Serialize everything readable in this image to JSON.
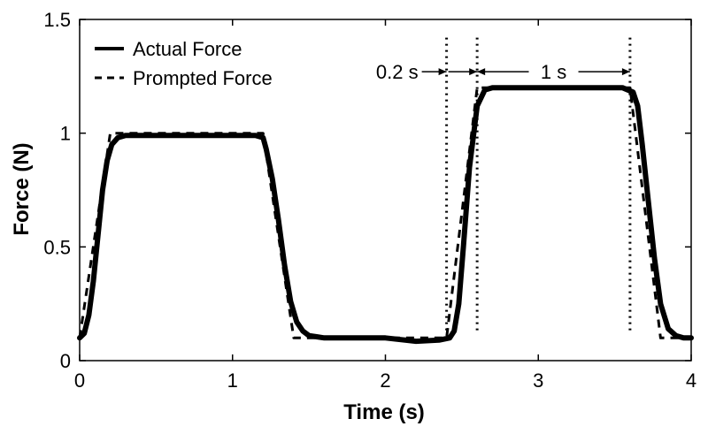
{
  "chart_data": {
    "type": "line",
    "title": "",
    "xlabel": "Time (s)",
    "ylabel": "Force (N)",
    "xlim": [
      0,
      4
    ],
    "ylim": [
      0,
      1.5
    ],
    "x_ticks": [
      {
        "value": 0,
        "label": "0"
      },
      {
        "value": 1,
        "label": "1"
      },
      {
        "value": 2,
        "label": "2"
      },
      {
        "value": 3,
        "label": "3"
      },
      {
        "value": 4,
        "label": "4"
      }
    ],
    "y_ticks": [
      {
        "value": 0,
        "label": "0"
      },
      {
        "value": 0.5,
        "label": "0.5"
      },
      {
        "value": 1,
        "label": "1"
      },
      {
        "value": 1.5,
        "label": "1.5"
      }
    ],
    "grid": false,
    "legend": "top-left",
    "series": [
      {
        "name": "Actual Force",
        "style": "solid",
        "color": "#000000",
        "x": [
          0,
          0.03,
          0.06,
          0.09,
          0.12,
          0.15,
          0.18,
          0.21,
          0.25,
          0.3,
          0.4,
          0.6,
          0.8,
          1.0,
          1.15,
          1.2,
          1.22,
          1.26,
          1.3,
          1.34,
          1.38,
          1.42,
          1.46,
          1.5,
          1.55,
          1.6,
          1.7,
          2.0,
          2.2,
          2.35,
          2.42,
          2.45,
          2.48,
          2.51,
          2.55,
          2.6,
          2.65,
          2.7,
          2.8,
          3.0,
          3.3,
          3.55,
          3.62,
          3.65,
          3.68,
          3.72,
          3.76,
          3.8,
          3.85,
          3.9,
          3.95,
          4.0
        ],
        "y": [
          0.1,
          0.12,
          0.2,
          0.35,
          0.55,
          0.75,
          0.88,
          0.95,
          0.98,
          0.99,
          0.99,
          0.99,
          0.99,
          0.99,
          0.99,
          0.98,
          0.93,
          0.8,
          0.62,
          0.42,
          0.26,
          0.17,
          0.13,
          0.11,
          0.105,
          0.1,
          0.1,
          0.1,
          0.085,
          0.09,
          0.1,
          0.13,
          0.25,
          0.5,
          0.85,
          1.12,
          1.19,
          1.2,
          1.2,
          1.2,
          1.2,
          1.2,
          1.18,
          1.12,
          0.95,
          0.7,
          0.45,
          0.25,
          0.14,
          0.11,
          0.1,
          0.1
        ]
      },
      {
        "name": "Prompted Force",
        "style": "dashed",
        "color": "#000000",
        "x": [
          0,
          0.2,
          1.2,
          1.4,
          2.4,
          2.6,
          3.6,
          3.8,
          4.0
        ],
        "y": [
          0.1,
          1.0,
          1.0,
          0.1,
          0.1,
          1.2,
          1.2,
          0.1,
          0.1
        ]
      }
    ],
    "reference_lines": [
      {
        "x": 2.4,
        "style": "dotted"
      },
      {
        "x": 2.6,
        "style": "dotted"
      },
      {
        "x": 3.6,
        "style": "dotted"
      }
    ],
    "annotations": [
      {
        "text": "0.2 s",
        "from_x": 2.4,
        "to_x": 2.6,
        "y": 1.27
      },
      {
        "text": "1 s",
        "from_x": 2.6,
        "to_x": 3.6,
        "y": 1.27
      }
    ]
  }
}
